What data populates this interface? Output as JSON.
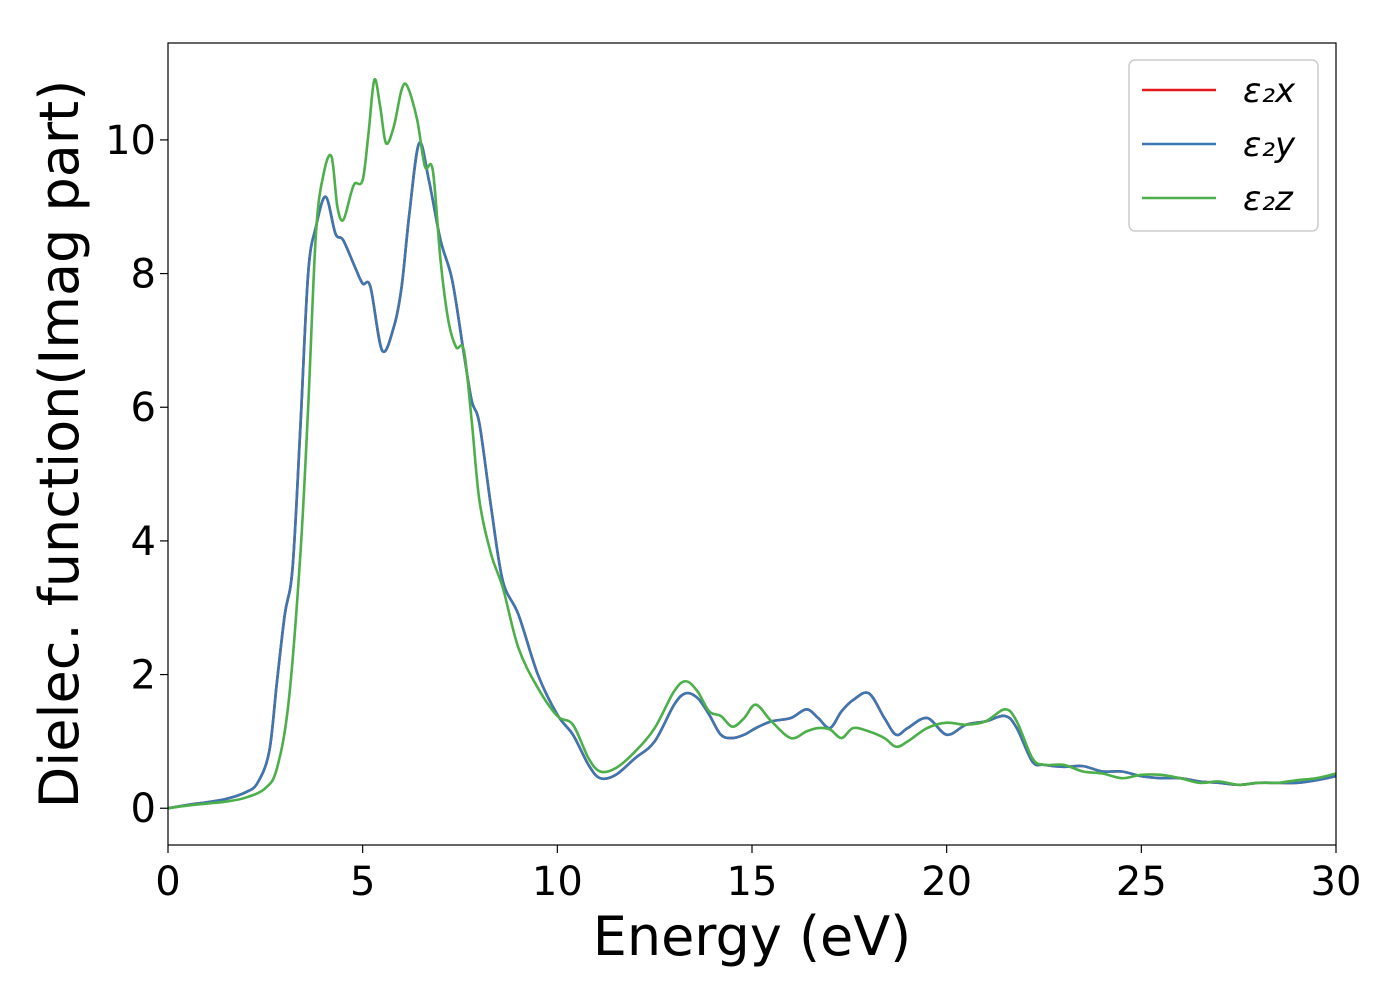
{
  "chart_data": {
    "type": "line",
    "title": "",
    "xlabel": "Energy (eV)",
    "ylabel": "Dielec. function(Imag part)",
    "xlim": [
      0,
      30
    ],
    "ylim": [
      -0.55,
      11.45
    ],
    "xticks": [
      0,
      5,
      10,
      15,
      20,
      25,
      30
    ],
    "yticks": [
      0,
      2,
      4,
      6,
      8,
      10
    ],
    "grid": false,
    "legend": "top-right",
    "series": [
      {
        "name": "ε₂x",
        "color": "#e41a1c",
        "x": [
          0,
          0.5,
          1,
          1.5,
          2,
          2.3,
          2.6,
          2.8,
          3.0,
          3.2,
          3.4,
          3.6,
          3.8,
          4.05,
          4.3,
          4.5,
          4.8,
          5.0,
          5.2,
          5.5,
          5.8,
          6.0,
          6.2,
          6.45,
          6.7,
          7.0,
          7.3,
          7.6,
          7.8,
          8.0,
          8.3,
          8.6,
          9.0,
          9.5,
          10.0,
          10.4,
          10.8,
          11.1,
          11.5,
          12.0,
          12.5,
          13.0,
          13.3,
          13.6,
          13.9,
          14.2,
          14.5,
          14.8,
          15.1,
          15.5,
          16.0,
          16.4,
          16.7,
          17.0,
          17.3,
          17.6,
          18.0,
          18.4,
          18.7,
          19.0,
          19.5,
          20.0,
          20.5,
          21.0,
          21.5,
          21.8,
          22.2,
          22.5,
          23.0,
          23.5,
          24.0,
          24.5,
          25.0,
          25.5,
          26.0,
          26.5,
          27.0,
          27.5,
          28.0,
          28.5,
          29.0,
          29.5,
          30.0
        ],
        "y": [
          0,
          0.05,
          0.09,
          0.14,
          0.24,
          0.38,
          0.85,
          1.9,
          2.9,
          3.6,
          5.7,
          8.0,
          8.7,
          9.15,
          8.6,
          8.5,
          8.1,
          7.85,
          7.8,
          6.85,
          7.2,
          7.8,
          8.9,
          9.95,
          9.4,
          8.5,
          7.9,
          6.8,
          6.1,
          5.75,
          4.5,
          3.4,
          2.9,
          2.0,
          1.4,
          1.1,
          0.65,
          0.45,
          0.5,
          0.75,
          1.0,
          1.55,
          1.72,
          1.65,
          1.4,
          1.1,
          1.05,
          1.1,
          1.2,
          1.3,
          1.35,
          1.48,
          1.35,
          1.2,
          1.45,
          1.62,
          1.72,
          1.35,
          1.1,
          1.2,
          1.35,
          1.1,
          1.25,
          1.3,
          1.38,
          1.2,
          0.7,
          0.65,
          0.62,
          0.63,
          0.55,
          0.55,
          0.48,
          0.45,
          0.45,
          0.4,
          0.38,
          0.35,
          0.38,
          0.38,
          0.38,
          0.42,
          0.48
        ]
      },
      {
        "name": "ε₂y",
        "color": "#3b77b0",
        "x": [
          0,
          0.5,
          1,
          1.5,
          2,
          2.3,
          2.6,
          2.8,
          3.0,
          3.2,
          3.4,
          3.6,
          3.8,
          4.05,
          4.3,
          4.5,
          4.8,
          5.0,
          5.2,
          5.5,
          5.8,
          6.0,
          6.2,
          6.45,
          6.7,
          7.0,
          7.3,
          7.6,
          7.8,
          8.0,
          8.3,
          8.6,
          9.0,
          9.5,
          10.0,
          10.4,
          10.8,
          11.1,
          11.5,
          12.0,
          12.5,
          13.0,
          13.3,
          13.6,
          13.9,
          14.2,
          14.5,
          14.8,
          15.1,
          15.5,
          16.0,
          16.4,
          16.7,
          17.0,
          17.3,
          17.6,
          18.0,
          18.4,
          18.7,
          19.0,
          19.5,
          20.0,
          20.5,
          21.0,
          21.5,
          21.8,
          22.2,
          22.5,
          23.0,
          23.5,
          24.0,
          24.5,
          25.0,
          25.5,
          26.0,
          26.5,
          27.0,
          27.5,
          28.0,
          28.5,
          29.0,
          29.5,
          30.0
        ],
        "y": [
          0,
          0.05,
          0.09,
          0.14,
          0.24,
          0.38,
          0.85,
          1.9,
          2.9,
          3.6,
          5.7,
          8.0,
          8.7,
          9.15,
          8.6,
          8.5,
          8.1,
          7.85,
          7.8,
          6.85,
          7.2,
          7.8,
          8.9,
          9.95,
          9.4,
          8.5,
          7.9,
          6.8,
          6.1,
          5.75,
          4.5,
          3.4,
          2.9,
          2.0,
          1.4,
          1.1,
          0.65,
          0.45,
          0.5,
          0.75,
          1.0,
          1.55,
          1.72,
          1.65,
          1.4,
          1.1,
          1.05,
          1.1,
          1.2,
          1.3,
          1.35,
          1.48,
          1.35,
          1.2,
          1.45,
          1.62,
          1.72,
          1.35,
          1.1,
          1.2,
          1.35,
          1.1,
          1.25,
          1.3,
          1.38,
          1.2,
          0.7,
          0.65,
          0.62,
          0.63,
          0.55,
          0.55,
          0.48,
          0.45,
          0.45,
          0.4,
          0.38,
          0.35,
          0.38,
          0.38,
          0.38,
          0.42,
          0.48
        ]
      },
      {
        "name": "ε₂z",
        "color": "#4daf4a",
        "x": [
          0,
          0.5,
          1,
          1.5,
          2,
          2.5,
          2.8,
          3.1,
          3.4,
          3.6,
          3.8,
          4.0,
          4.2,
          4.35,
          4.5,
          4.7,
          4.8,
          5.0,
          5.15,
          5.3,
          5.45,
          5.6,
          5.8,
          6.0,
          6.15,
          6.4,
          6.6,
          6.8,
          7.0,
          7.2,
          7.4,
          7.6,
          7.8,
          8.0,
          8.3,
          8.6,
          9.0,
          9.5,
          10.0,
          10.4,
          10.8,
          11.1,
          11.5,
          12.0,
          12.5,
          13.0,
          13.3,
          13.6,
          13.9,
          14.2,
          14.5,
          14.8,
          15.1,
          15.5,
          16.0,
          16.4,
          16.7,
          17.0,
          17.3,
          17.6,
          18.0,
          18.4,
          18.7,
          19.0,
          19.5,
          20.0,
          20.5,
          21.0,
          21.5,
          21.8,
          22.2,
          22.5,
          23.0,
          23.5,
          24.0,
          24.5,
          25.0,
          25.5,
          26.0,
          26.5,
          27.0,
          27.5,
          28.0,
          28.5,
          29.0,
          29.5,
          30.0
        ],
        "y": [
          0,
          0.04,
          0.07,
          0.1,
          0.16,
          0.3,
          0.6,
          1.6,
          3.8,
          6.0,
          8.6,
          9.5,
          9.75,
          9.0,
          8.8,
          9.2,
          9.35,
          9.4,
          10.1,
          10.9,
          10.5,
          9.95,
          10.2,
          10.75,
          10.8,
          10.3,
          9.6,
          9.55,
          8.2,
          7.3,
          6.9,
          6.85,
          5.8,
          4.6,
          3.8,
          3.3,
          2.4,
          1.8,
          1.38,
          1.25,
          0.75,
          0.55,
          0.6,
          0.85,
          1.2,
          1.75,
          1.9,
          1.75,
          1.45,
          1.38,
          1.22,
          1.35,
          1.55,
          1.3,
          1.05,
          1.15,
          1.2,
          1.18,
          1.05,
          1.2,
          1.15,
          1.05,
          0.92,
          1.0,
          1.2,
          1.28,
          1.25,
          1.3,
          1.48,
          1.3,
          0.75,
          0.65,
          0.65,
          0.55,
          0.52,
          0.45,
          0.5,
          0.5,
          0.45,
          0.38,
          0.4,
          0.35,
          0.38,
          0.38,
          0.42,
          0.45,
          0.52
        ]
      }
    ]
  }
}
